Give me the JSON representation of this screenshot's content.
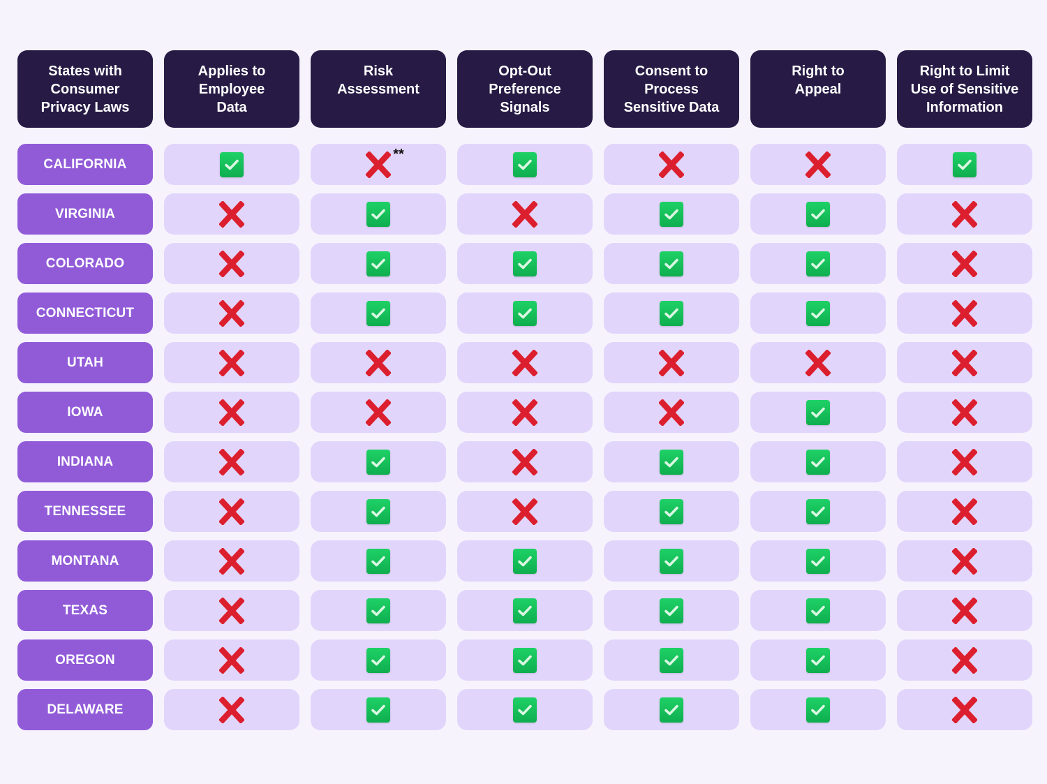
{
  "colors": {
    "background": "#f6f3fd",
    "header_bg": "#271b45",
    "state_bg": "#915bd8",
    "cell_bg": "#e2d5fb",
    "check_green": "#14c05a",
    "x_red": "#dc1f2e"
  },
  "headers": [
    "States with\nConsumer\nPrivacy Laws",
    "Applies to\nEmployee\nData",
    "Risk\nAssessment",
    "Opt-Out\nPreference\nSignals",
    "Consent to\nProcess\nSensitive Data",
    "Right to\nAppeal",
    "Right to Limit\nUse of Sensitive\nInformation"
  ],
  "icons": {
    "yes": "check-icon",
    "no": "x-icon"
  },
  "rows": [
    {
      "state": "CALIFORNIA",
      "values": [
        "yes",
        "no",
        "yes",
        "no",
        "no",
        "yes"
      ],
      "notes": [
        "",
        "**",
        "",
        "",
        "",
        ""
      ]
    },
    {
      "state": "VIRGINIA",
      "values": [
        "no",
        "yes",
        "no",
        "yes",
        "yes",
        "no"
      ],
      "notes": [
        "",
        "",
        "",
        "",
        "",
        ""
      ]
    },
    {
      "state": "COLORADO",
      "values": [
        "no",
        "yes",
        "yes",
        "yes",
        "yes",
        "no"
      ],
      "notes": [
        "",
        "",
        "",
        "",
        "",
        ""
      ]
    },
    {
      "state": "CONNECTICUT",
      "values": [
        "no",
        "yes",
        "yes",
        "yes",
        "yes",
        "no"
      ],
      "notes": [
        "",
        "",
        "",
        "",
        "",
        ""
      ]
    },
    {
      "state": "UTAH",
      "values": [
        "no",
        "no",
        "no",
        "no",
        "no",
        "no"
      ],
      "notes": [
        "",
        "",
        "",
        "",
        "",
        ""
      ]
    },
    {
      "state": "IOWA",
      "values": [
        "no",
        "no",
        "no",
        "no",
        "yes",
        "no"
      ],
      "notes": [
        "",
        "",
        "",
        "",
        "",
        ""
      ]
    },
    {
      "state": "INDIANA",
      "values": [
        "no",
        "yes",
        "no",
        "yes",
        "yes",
        "no"
      ],
      "notes": [
        "",
        "",
        "",
        "",
        "",
        ""
      ]
    },
    {
      "state": "TENNESSEE",
      "values": [
        "no",
        "yes",
        "no",
        "yes",
        "yes",
        "no"
      ],
      "notes": [
        "",
        "",
        "",
        "",
        "",
        ""
      ]
    },
    {
      "state": "MONTANA",
      "values": [
        "no",
        "yes",
        "yes",
        "yes",
        "yes",
        "no"
      ],
      "notes": [
        "",
        "",
        "",
        "",
        "",
        ""
      ]
    },
    {
      "state": "TEXAS",
      "values": [
        "no",
        "yes",
        "yes",
        "yes",
        "yes",
        "no"
      ],
      "notes": [
        "",
        "",
        "",
        "",
        "",
        ""
      ]
    },
    {
      "state": "OREGON",
      "values": [
        "no",
        "yes",
        "yes",
        "yes",
        "yes",
        "no"
      ],
      "notes": [
        "",
        "",
        "",
        "",
        "",
        ""
      ]
    },
    {
      "state": "DELAWARE",
      "values": [
        "no",
        "yes",
        "yes",
        "yes",
        "yes",
        "no"
      ],
      "notes": [
        "",
        "",
        "",
        "",
        "",
        ""
      ]
    }
  ]
}
